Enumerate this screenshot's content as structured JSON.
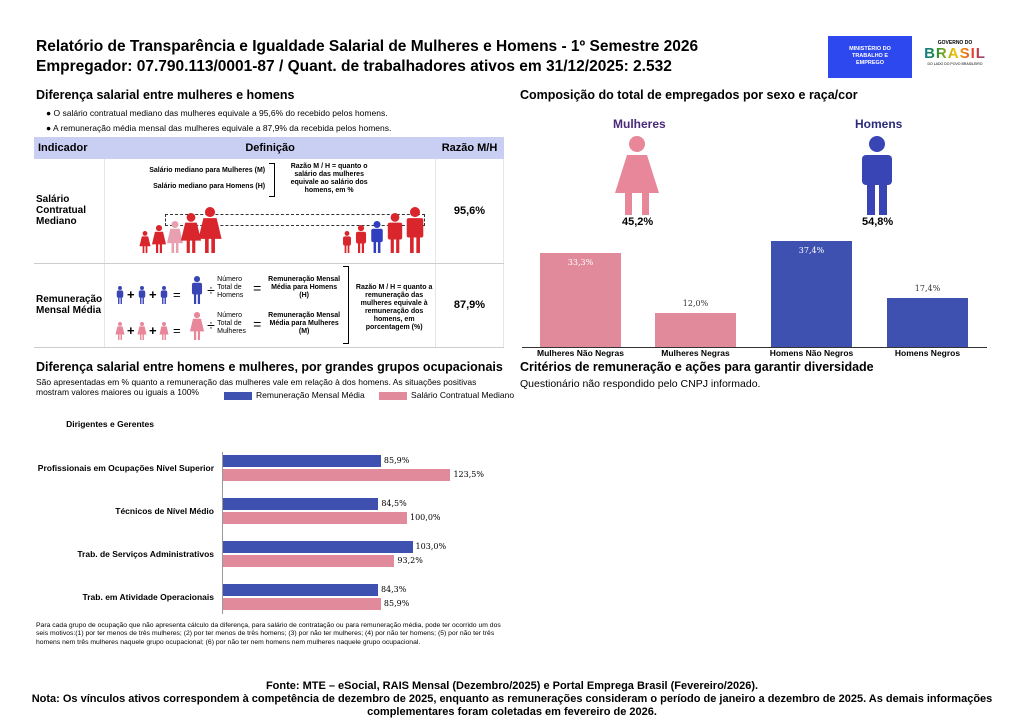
{
  "header": {
    "title": "Relatório de Transparência e Igualdade Salarial de Mulheres e Homens - 1º Semestre 2026",
    "subtitle": "Empregador: 07.790.113/0001-87 / Quant. de trabalhadores ativos em 31/12/2025: 2.532",
    "logo_ministry": "MINISTÉRIO DO TRABALHO E EMPREGO",
    "logo_gov_top": "GOVERNO DO",
    "logo_gov": "BRASIL",
    "logo_gov_bottom": "DO LADO DO POVO BRASILEIRO"
  },
  "diff": {
    "title": "Diferença salarial entre mulheres e homens",
    "bullets": [
      "O salário contratual mediano das mulheres equivale a 95,6% do recebido pelos homens.",
      "A remuneração média mensal das mulheres equivale a 87,9% da recebida pelos homens."
    ]
  },
  "table": {
    "headers": [
      "Indicador",
      "Definição",
      "Razão M/H"
    ],
    "rows": [
      {
        "indicator": "Salário Contratual Mediano",
        "def_m": "Salário mediano para Mulheres (M)",
        "def_h": "Salário mediano para Homens (H)",
        "def_ratio": "Razão M / H = quanto o salário das mulheres equivale ao salário dos homens, em %",
        "value": "95,6%"
      },
      {
        "indicator": "Remuneração Mensal Média",
        "num_h": "Número Total de Homens",
        "res_h": "Remuneração Mensal Média para Homens (H)",
        "num_m": "Número Total de Mulheres",
        "res_m": "Remuneração Mensal Média para Mulheres (M)",
        "def_ratio": "Razão M / H = quanto a remuneração das mulheres equivale à remuneração dos homens, em porcentagem (%)",
        "value": "87,9%"
      }
    ]
  },
  "groups": {
    "title": "Diferença salarial entre homens e mulheres, por grandes grupos ocupacionais",
    "desc": "São apresentadas em % quanto a remuneração das mulheres vale em relação à dos homens. As situações positivas mostram valores maiores ou iguais a 100%",
    "note": "Para cada grupo de ocupação que não apresenta cálculo da diferença, para salário de contratação ou para remuneração média, pode ter ocorrido um dos seis motivos:(1) por ter menos de três mulheres; (2) por ter menos de três homens; (3) por não ter mulheres; (4) por não ter homens; (5) por não ter três homens nem três mulheres naquele grupo ocupacional; (6) por não ter nem homens nem mulheres naquele grupo ocupacional."
  },
  "composition": {
    "title": "Composição do total de empregados por sexo e raça/cor",
    "women_label": "Mulheres",
    "men_label": "Homens",
    "women_pct": "45,2%",
    "men_pct": "54,8%"
  },
  "criteria": {
    "title": "Critérios de remuneração e ações para garantir diversidade",
    "text": "Questionário não respondido pelo CNPJ informado."
  },
  "footer": {
    "source": "Fonte: MTE – eSocial, RAIS Mensal (Dezembro/2025) e Portal Emprega Brasil (Fevereiro/2026).",
    "note": "Nota: Os vínculos ativos correspondem à competência de dezembro de 2025, enquanto as remunerações consideram o período de janeiro a dezembro de 2025. As demais informações complementares foram coletadas em fevereiro de 2026."
  },
  "colors": {
    "blue": "#3f51b0",
    "pink": "#e08a9b",
    "header_bg": "#c9cff3",
    "women_icon": "#e8869a",
    "men_icon": "#3a45b5"
  },
  "chart_data": [
    {
      "type": "bar",
      "orientation": "horizontal",
      "categories": [
        "Dirigentes e Gerentes",
        "Profissionais em Ocupações Nível Superior",
        "Técnicos de Nível Médio",
        "Trab. de Serviços Administrativos",
        "Trab. em Atividade Operacionais"
      ],
      "series": [
        {
          "name": "Remuneração Mensal Média",
          "values": [
            null,
            85.9,
            84.5,
            103.0,
            84.3
          ],
          "labels": [
            "",
            "85,9%",
            "84,5%",
            "103,0%",
            "84,3%"
          ]
        },
        {
          "name": "Salário Contratual Mediano",
          "values": [
            null,
            123.5,
            100.0,
            93.2,
            85.9
          ],
          "labels": [
            "",
            "123,5%",
            "100,0%",
            "93,2%",
            "85,9%"
          ]
        }
      ],
      "legend": "top-right"
    },
    {
      "type": "bar",
      "categories": [
        "Mulheres Não Negras",
        "Mulheres Negras",
        "Homens Não Negros",
        "Homens Negros"
      ],
      "values": [
        33.3,
        12.0,
        37.4,
        17.4
      ],
      "labels": [
        "33,3%",
        "12,0%",
        "37,4%",
        "17,4%"
      ],
      "colors": [
        "#e08a9b",
        "#e08a9b",
        "#3f51b0",
        "#3f51b0"
      ]
    }
  ]
}
